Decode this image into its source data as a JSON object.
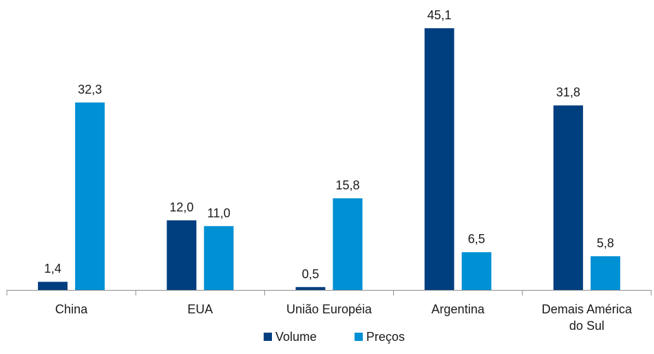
{
  "chart_data": {
    "type": "bar",
    "categories": [
      [
        "China"
      ],
      [
        "EUA"
      ],
      [
        "União Européia"
      ],
      [
        "Argentina"
      ],
      [
        "Demais América",
        "do Sul"
      ]
    ],
    "series": [
      {
        "name": "Volume",
        "color": "#003f7f",
        "values": [
          1.4,
          12.0,
          0.5,
          45.1,
          31.8
        ],
        "labels": [
          "1,4",
          "12,0",
          "0,5",
          "45,1",
          "31,8"
        ]
      },
      {
        "name": "Preços",
        "color": "#0090d4",
        "values": [
          32.3,
          11.0,
          15.8,
          6.5,
          5.8
        ],
        "labels": [
          "32,3",
          "11,0",
          "15,8",
          "6,5",
          "5,8"
        ]
      }
    ],
    "ylim": [
      0,
      45.1
    ],
    "grid": false,
    "legend_position": "bottom"
  }
}
